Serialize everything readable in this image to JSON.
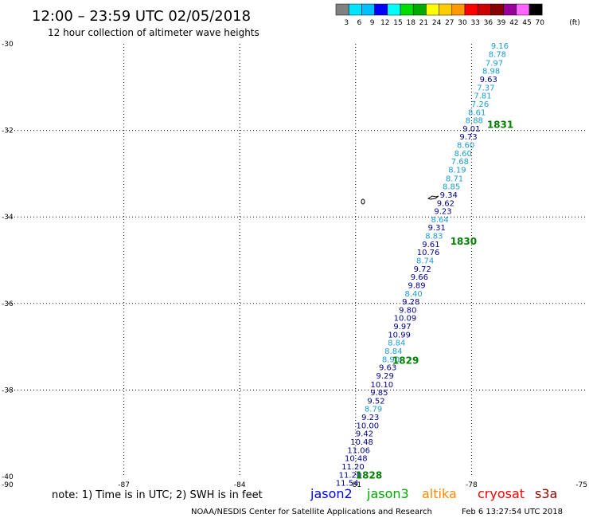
{
  "header": {
    "title": "12:00 – 23:59 UTC 02/05/2018",
    "subtitle": "12 hour collection of altimeter wave heights"
  },
  "scale": {
    "labels": [
      "3",
      "6",
      "9",
      "12",
      "15",
      "18",
      "21",
      "24",
      "27",
      "30",
      "33",
      "36",
      "39",
      "42",
      "45",
      "70"
    ],
    "unit": "(ft)",
    "colors": [
      "#808080",
      "#00e5ff",
      "#00bfff",
      "#0000ff",
      "#00ffff",
      "#00dd00",
      "#00aa00",
      "#ffff00",
      "#ffcc00",
      "#ff9900",
      "#ff0000",
      "#cc0000",
      "#880000",
      "#990099",
      "#ff66ff",
      "#000000"
    ]
  },
  "map": {
    "lon_ticks": [
      "-90",
      "-87",
      "-84",
      "-81",
      "-78",
      "-75"
    ],
    "lat_ticks": [
      "-30",
      "-32",
      "-34",
      "-36",
      "-38",
      "-40"
    ],
    "lon_range": [
      -90,
      -75
    ],
    "lat_range": [
      -40,
      -30
    ]
  },
  "chart_data": {
    "type": "scatter",
    "title": "12:00 – 23:59 UTC 02/05/2018",
    "xlim": [
      -90,
      -75
    ],
    "ylim": [
      -40,
      -30
    ],
    "grid": true,
    "points": [
      {
        "lon": -77.27,
        "lat": -30.04,
        "value": "9.16",
        "color": "#1a9ad6"
      },
      {
        "lon": -77.33,
        "lat": -30.23,
        "value": "8.78",
        "color": "#1a9ad6"
      },
      {
        "lon": -77.41,
        "lat": -30.43,
        "value": "7.97",
        "color": "#1a9ad6"
      },
      {
        "lon": -77.49,
        "lat": -30.62,
        "value": "8.98",
        "color": "#1a9ad6"
      },
      {
        "lon": -77.56,
        "lat": -30.81,
        "value": "9.63",
        "color": "#00008b"
      },
      {
        "lon": -77.63,
        "lat": -31.0,
        "value": "7.37",
        "color": "#1a9ad6"
      },
      {
        "lon": -77.71,
        "lat": -31.19,
        "value": "7.81",
        "color": "#1a9ad6"
      },
      {
        "lon": -77.78,
        "lat": -31.38,
        "value": "7.26",
        "color": "#1a9ad6"
      },
      {
        "lon": -77.86,
        "lat": -31.57,
        "value": "8.61",
        "color": "#1a9ad6"
      },
      {
        "lon": -77.93,
        "lat": -31.76,
        "value": "8.88",
        "color": "#1a9ad6"
      },
      {
        "lon": -78.0,
        "lat": -31.95,
        "value": "9.01",
        "color": "#00008b"
      },
      {
        "lon": -78.08,
        "lat": -32.14,
        "value": "9.73",
        "color": "#00008b"
      },
      {
        "lon": -78.15,
        "lat": -32.33,
        "value": "8.60",
        "color": "#1a9ad6"
      },
      {
        "lon": -78.22,
        "lat": -32.52,
        "value": "8.60",
        "color": "#1a9ad6"
      },
      {
        "lon": -78.3,
        "lat": -32.71,
        "value": "7.68",
        "color": "#1a9ad6"
      },
      {
        "lon": -78.37,
        "lat": -32.9,
        "value": "8.19",
        "color": "#1a9ad6"
      },
      {
        "lon": -78.44,
        "lat": -33.1,
        "value": "8.71",
        "color": "#1a9ad6"
      },
      {
        "lon": -78.52,
        "lat": -33.29,
        "value": "8.85",
        "color": "#1a9ad6"
      },
      {
        "lon": -78.59,
        "lat": -33.48,
        "value": "9.34",
        "color": "#00008b"
      },
      {
        "lon": -78.67,
        "lat": -33.67,
        "value": "9.62",
        "color": "#00008b"
      },
      {
        "lon": -78.74,
        "lat": -33.86,
        "value": "9.23",
        "color": "#00008b"
      },
      {
        "lon": -78.82,
        "lat": -34.05,
        "value": "8.64",
        "color": "#1a9ad6"
      },
      {
        "lon": -78.9,
        "lat": -34.24,
        "value": "9.31",
        "color": "#00008b"
      },
      {
        "lon": -78.97,
        "lat": -34.43,
        "value": "8.83",
        "color": "#1a9ad6"
      },
      {
        "lon": -79.05,
        "lat": -34.62,
        "value": "9.61",
        "color": "#00008b"
      },
      {
        "lon": -79.12,
        "lat": -34.81,
        "value": "10.76",
        "color": "#00008b"
      },
      {
        "lon": -79.2,
        "lat": -35.0,
        "value": "8.74",
        "color": "#1a9ad6"
      },
      {
        "lon": -79.27,
        "lat": -35.19,
        "value": "9.72",
        "color": "#00008b"
      },
      {
        "lon": -79.35,
        "lat": -35.38,
        "value": "9.66",
        "color": "#00008b"
      },
      {
        "lon": -79.42,
        "lat": -35.57,
        "value": "9.89",
        "color": "#00008b"
      },
      {
        "lon": -79.5,
        "lat": -35.76,
        "value": "8.40",
        "color": "#1a9ad6"
      },
      {
        "lon": -79.57,
        "lat": -35.95,
        "value": "9.28",
        "color": "#00008b"
      },
      {
        "lon": -79.65,
        "lat": -36.14,
        "value": "9.80",
        "color": "#00008b"
      },
      {
        "lon": -79.72,
        "lat": -36.33,
        "value": "10.09",
        "color": "#00008b"
      },
      {
        "lon": -79.79,
        "lat": -36.52,
        "value": "9.97",
        "color": "#00008b"
      },
      {
        "lon": -79.87,
        "lat": -36.71,
        "value": "10.99",
        "color": "#00008b"
      },
      {
        "lon": -79.94,
        "lat": -36.9,
        "value": "8.84",
        "color": "#1a9ad6"
      },
      {
        "lon": -80.02,
        "lat": -37.09,
        "value": "8.84",
        "color": "#1a9ad6"
      },
      {
        "lon": -80.09,
        "lat": -37.28,
        "value": "8.90",
        "color": "#1a9ad6"
      },
      {
        "lon": -80.17,
        "lat": -37.47,
        "value": "9.63",
        "color": "#00008b"
      },
      {
        "lon": -80.24,
        "lat": -37.66,
        "value": "9.29",
        "color": "#00008b"
      },
      {
        "lon": -80.32,
        "lat": -37.86,
        "value": "10.10",
        "color": "#00008b"
      },
      {
        "lon": -80.39,
        "lat": -38.05,
        "value": "9.85",
        "color": "#00008b"
      },
      {
        "lon": -80.47,
        "lat": -38.24,
        "value": "9.52",
        "color": "#00008b"
      },
      {
        "lon": -80.54,
        "lat": -38.43,
        "value": "8.79",
        "color": "#1a9ad6"
      },
      {
        "lon": -80.62,
        "lat": -38.62,
        "value": "9.23",
        "color": "#00008b"
      },
      {
        "lon": -80.69,
        "lat": -38.81,
        "value": "10.00",
        "color": "#00008b"
      },
      {
        "lon": -80.77,
        "lat": -39.0,
        "value": "9.42",
        "color": "#00008b"
      },
      {
        "lon": -80.84,
        "lat": -39.19,
        "value": "10.48",
        "color": "#00008b"
      },
      {
        "lon": -80.92,
        "lat": -39.38,
        "value": "11.06",
        "color": "#00008b"
      },
      {
        "lon": -80.99,
        "lat": -39.57,
        "value": "10.48",
        "color": "#00008b"
      },
      {
        "lon": -81.07,
        "lat": -39.76,
        "value": "11.20",
        "color": "#00008b"
      },
      {
        "lon": -81.14,
        "lat": -39.95,
        "value": "11.20",
        "color": "#00008b"
      },
      {
        "lon": -81.22,
        "lat": -40.14,
        "value": "11.54",
        "color": "#00008b"
      }
    ],
    "time_labels": [
      {
        "lon": -77.6,
        "lat": -31.85,
        "text": "1831"
      },
      {
        "lon": -78.55,
        "lat": -34.55,
        "text": "1830"
      },
      {
        "lon": -80.05,
        "lat": -37.3,
        "text": "1829"
      },
      {
        "lon": -81.0,
        "lat": -39.95,
        "text": "1828"
      }
    ]
  },
  "footer": {
    "note": "note: 1) Time is in UTC; 2) SWH is in feet",
    "satellites": [
      {
        "name": "jason2",
        "color": "#0000ff"
      },
      {
        "name": "jason3",
        "color": "#00aa00"
      },
      {
        "name": "altika",
        "color": "#ff8800"
      },
      {
        "name": "cryosat",
        "color": "#ff0000"
      },
      {
        "name": "s3a",
        "color": "#990000"
      }
    ],
    "credit": "NOAA/NESDIS Center for Satellite Applications and Research",
    "timestamp": "Feb  6 13:27:54 UTC 2018"
  }
}
